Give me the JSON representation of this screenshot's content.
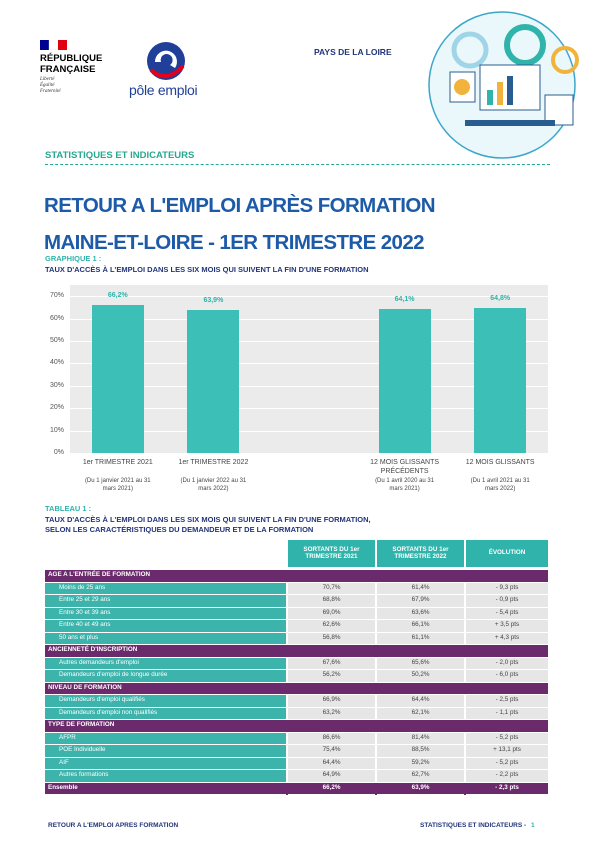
{
  "header": {
    "republic": [
      "RÉPUBLIQUE",
      "FRANÇAISE"
    ],
    "motto": [
      "Liberté",
      "Égalité",
      "Fraternité"
    ],
    "brand": "pôle emploi",
    "region": "PAYS DE LA LOIRE",
    "section": "STATISTIQUES ET INDICATEURS"
  },
  "title": [
    "RETOUR A L'EMPLOI APRÈS  FORMATION",
    "MAINE-ET-LOIRE -  1ER TRIMESTRE 2022"
  ],
  "chart": {
    "type": "bar",
    "label": "GRAPHIQUE 1 :",
    "title": "TAUX D'ACCÈS À L'EMPLOI DANS LES SIX MOIS QUI SUIVENT LA FIN D'UNE FORMATION",
    "categories": [
      "1er TRIMESTRE 2021",
      "1er TRIMESTRE 2022",
      null,
      "12 MOIS GLISSANTS PRÉCÉDENTS",
      "12 MOIS GLISSANTS"
    ],
    "periods": [
      "(Du 1 janvier 2021 au 31 mars 2021)",
      "(Du 1 janvier 2022 au 31 mars 2022)",
      null,
      "(Du 1 avril 2020 au 31 mars 2021)",
      "(Du 1 avril 2021 au 31 mars 2022)"
    ],
    "values": [
      66.2,
      63.9,
      null,
      64.1,
      64.8
    ],
    "value_labels": [
      "66,2%",
      "63,9%",
      null,
      "64,1%",
      "64,8%"
    ],
    "color": "#3cbfb6",
    "ylim": [
      0,
      75
    ],
    "yticks": [
      {
        "value": 0,
        "label": "0%"
      },
      {
        "value": 10,
        "label": "10%"
      },
      {
        "value": 20,
        "label": "20%"
      },
      {
        "value": 30,
        "label": "30%"
      },
      {
        "value": 40,
        "label": "40%"
      },
      {
        "value": 50,
        "label": "50%"
      },
      {
        "value": 60,
        "label": "60%"
      },
      {
        "value": 70,
        "label": "70%"
      }
    ],
    "grid": true
  },
  "table": {
    "label": "TABLEAU 1 :",
    "title": [
      "TAUX D'ACCÈS À L'EMPLOI DANS LES SIX MOIS QUI SUIVENT LA FIN D'UNE FORMATION,",
      "SELON LES CARACTÉRISTIQUES DU DEMANDEUR ET DE LA FORMATION"
    ],
    "columns": [
      "SORTANTS DU 1er TRIMESTRE 2021",
      "SORTANTS DU 1er TRIMESTRE 2022",
      "ÉVOLUTION"
    ],
    "groups": [
      {
        "name": "AGE A L'ENTRÉE DE FORMATION",
        "rows": [
          [
            "Moins de 25 ans",
            "70,7%",
            "61,4%",
            "- 9,3 pts"
          ],
          [
            "Entre 25 et 29 ans",
            "68,8%",
            "67,9%",
            "- 0,9 pts"
          ],
          [
            "Entre 30 et 39 ans",
            "69,0%",
            "63,6%",
            "- 5,4 pts"
          ],
          [
            "Entre 40 et 49 ans",
            "62,6%",
            "66,1%",
            "+ 3,5 pts"
          ],
          [
            "50 ans et plus",
            "56,8%",
            "61,1%",
            "+ 4,3 pts"
          ]
        ]
      },
      {
        "name": "ANCIENNETÉ D'INSCRIPTION",
        "rows": [
          [
            "Autres demandeurs d'emploi",
            "67,6%",
            "65,6%",
            "- 2,0 pts"
          ],
          [
            "Demandeurs d'emploi de longue durée",
            "56,2%",
            "50,2%",
            "- 6,0 pts"
          ]
        ]
      },
      {
        "name": "NIVEAU DE FORMATION",
        "rows": [
          [
            "Demandeurs d'emploi qualifiés",
            "66,9%",
            "64,4%",
            "- 2,5 pts"
          ],
          [
            "Demandeurs d'emploi non qualifiés",
            "63,2%",
            "62,1%",
            "- 1,1 pts"
          ]
        ]
      },
      {
        "name": "TYPE DE FORMATION",
        "rows": [
          [
            "AFPR",
            "86,6%",
            "81,4%",
            "- 5,2 pts"
          ],
          [
            "POE Individuelle",
            "75,4%",
            "88,5%",
            "+ 13,1 pts"
          ],
          [
            "AIF",
            "64,4%",
            "59,2%",
            "- 5,2 pts"
          ],
          [
            "Autres formations",
            "64,9%",
            "62,7%",
            "- 2,2 pts"
          ]
        ]
      }
    ],
    "total": [
      "Ensemble",
      "66,2%",
      "63,9%",
      "- 2,3 pts"
    ]
  },
  "footer": {
    "left": "RETOUR A L'EMPLOI APRES FORMATION",
    "right": "STATISTIQUES ET INDICATEURS -",
    "page": 1
  }
}
